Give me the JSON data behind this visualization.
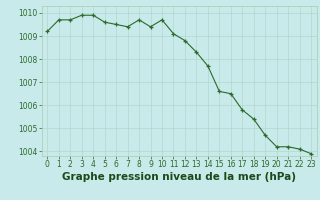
{
  "hours": [
    0,
    1,
    2,
    3,
    4,
    5,
    6,
    7,
    8,
    9,
    10,
    11,
    12,
    13,
    14,
    15,
    16,
    17,
    18,
    19,
    20,
    21,
    22,
    23
  ],
  "pressure": [
    1009.2,
    1009.7,
    1009.7,
    1009.9,
    1009.9,
    1009.6,
    1009.5,
    1009.4,
    1009.7,
    1009.4,
    1009.7,
    1009.1,
    1008.8,
    1008.3,
    1007.7,
    1006.6,
    1006.5,
    1005.8,
    1005.4,
    1004.7,
    1004.2,
    1004.2,
    1004.1,
    1003.9
  ],
  "ylim_min": 1003.8,
  "ylim_max": 1010.3,
  "xlim_min": -0.5,
  "xlim_max": 23.5,
  "yticks": [
    1004,
    1005,
    1006,
    1007,
    1008,
    1009,
    1010
  ],
  "xticks": [
    0,
    1,
    2,
    3,
    4,
    5,
    6,
    7,
    8,
    9,
    10,
    11,
    12,
    13,
    14,
    15,
    16,
    17,
    18,
    19,
    20,
    21,
    22,
    23
  ],
  "line_color": "#2d6a2d",
  "marker_color": "#2d6a2d",
  "bg_color": "#c8eaea",
  "grid_color": "#b0d8cc",
  "xlabel": "Graphe pression niveau de la mer (hPa)",
  "tick_color": "#2d6a2d",
  "tick_fontsize": 5.5,
  "xlabel_fontsize": 7.5,
  "xlabel_color": "#1a4a1a",
  "spine_color": "#aaccaa"
}
